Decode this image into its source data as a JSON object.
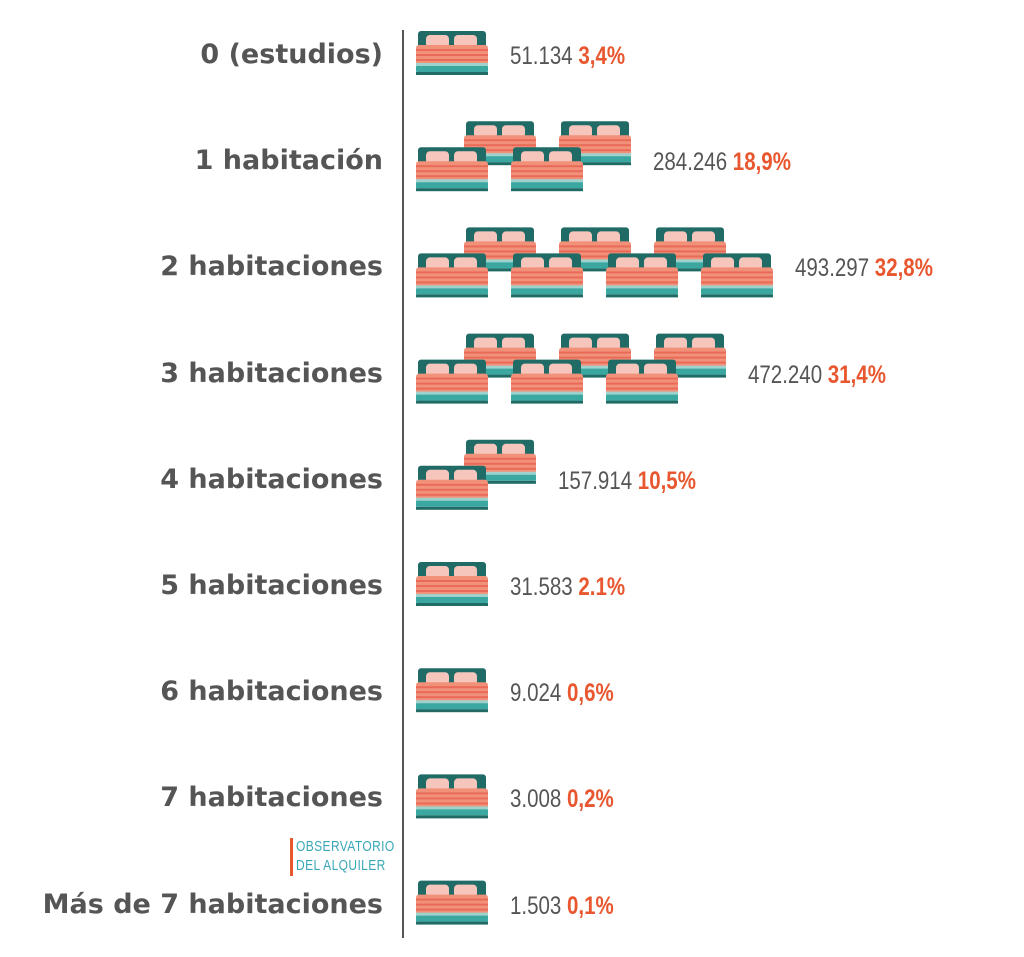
{
  "chart_data": {
    "type": "bar",
    "categories": [
      "0 (estudios)",
      "1 habitación",
      "2 habitaciones",
      "3 habitaciones",
      "4 habitaciones",
      "5 habitaciones",
      "6 habitaciones",
      "7 habitaciones",
      "Más de 7 habitaciones"
    ],
    "values": [
      51134,
      284246,
      493297,
      472240,
      157914,
      31583,
      9024,
      3008,
      1503
    ],
    "value_labels": [
      "51.134",
      "284.246",
      "493.297",
      "472.240",
      "157.914",
      "31.583",
      "9.024",
      "3.008",
      "1.503"
    ],
    "percent_labels": [
      "3,4%",
      "18,9%",
      "32,8%",
      "31,4%",
      "10,5%",
      "2.1%",
      "0,6%",
      "0,2%",
      "0,1%"
    ],
    "icons_per_category": [
      1,
      4,
      7,
      6,
      2,
      1,
      1,
      1,
      1
    ],
    "icon": "bed-icon",
    "title": "",
    "xlabel": "",
    "ylabel": ""
  },
  "logo": {
    "line1": "OBSERVATORIO",
    "line2": "DEL ALQUILER"
  },
  "colors": {
    "label": "#555555",
    "percent": "#e8572f",
    "bed_frame": "#216b67",
    "bed_base": "#3aa7a0",
    "bed_sheet": "#f2917a",
    "bed_stripe": "#e96a57",
    "pillow": "#f6c6bd",
    "logo_text": "#3aa7b7",
    "logo_bar": "#e8572f"
  }
}
